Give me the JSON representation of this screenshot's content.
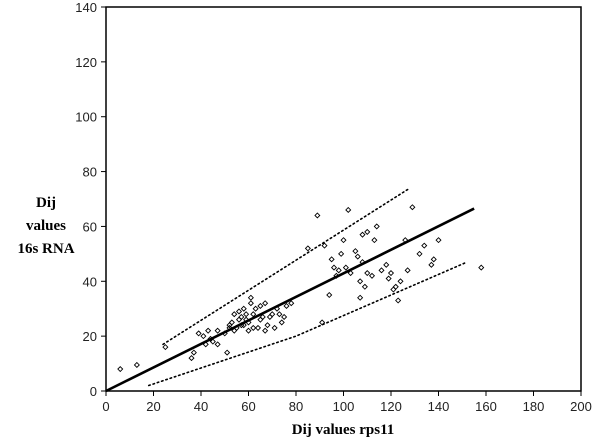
{
  "chart_data": {
    "type": "scatter",
    "xlabel": "Dij values rps11",
    "ylabel_lines": [
      "Dij",
      "values",
      "16s RNA"
    ],
    "xlim": [
      0,
      200
    ],
    "ylim": [
      0,
      140
    ],
    "x_ticks": [
      0,
      20,
      40,
      60,
      80,
      100,
      120,
      140,
      160,
      180,
      200
    ],
    "y_ticks": [
      0,
      20,
      40,
      60,
      80,
      100,
      120,
      140
    ],
    "grid": false,
    "legend": "none",
    "points": [
      [
        6,
        8
      ],
      [
        13,
        9.5
      ],
      [
        25,
        16
      ],
      [
        36,
        12
      ],
      [
        37,
        14
      ],
      [
        39,
        21
      ],
      [
        41,
        20
      ],
      [
        42,
        17
      ],
      [
        43,
        22
      ],
      [
        44,
        19
      ],
      [
        45,
        18
      ],
      [
        47,
        17
      ],
      [
        47,
        22
      ],
      [
        50,
        21
      ],
      [
        51,
        14
      ],
      [
        52,
        23
      ],
      [
        52,
        24
      ],
      [
        53,
        25
      ],
      [
        54,
        22
      ],
      [
        54,
        28
      ],
      [
        55,
        23
      ],
      [
        56,
        26
      ],
      [
        56,
        29
      ],
      [
        57,
        24
      ],
      [
        57,
        27
      ],
      [
        58,
        24
      ],
      [
        58,
        30
      ],
      [
        59,
        26
      ],
      [
        59,
        28
      ],
      [
        60,
        22
      ],
      [
        60,
        25
      ],
      [
        61,
        32
      ],
      [
        61,
        34
      ],
      [
        62,
        23
      ],
      [
        62,
        28
      ],
      [
        63,
        30
      ],
      [
        64,
        23
      ],
      [
        65,
        26
      ],
      [
        65,
        31
      ],
      [
        66,
        27
      ],
      [
        67,
        22
      ],
      [
        67,
        32
      ],
      [
        68,
        24
      ],
      [
        69,
        27
      ],
      [
        70,
        28
      ],
      [
        71,
        23
      ],
      [
        72,
        30
      ],
      [
        73,
        28
      ],
      [
        74,
        25
      ],
      [
        75,
        27
      ],
      [
        76,
        31
      ],
      [
        78,
        32
      ],
      [
        85,
        52
      ],
      [
        89,
        64
      ],
      [
        91,
        25
      ],
      [
        92,
        53
      ],
      [
        94,
        35
      ],
      [
        95,
        48
      ],
      [
        96,
        45
      ],
      [
        97,
        42
      ],
      [
        98,
        44
      ],
      [
        99,
        50
      ],
      [
        100,
        55
      ],
      [
        101,
        45
      ],
      [
        102,
        66
      ],
      [
        103,
        43
      ],
      [
        105,
        51
      ],
      [
        106,
        49
      ],
      [
        107,
        34
      ],
      [
        107,
        40
      ],
      [
        108,
        47
      ],
      [
        108,
        57
      ],
      [
        109,
        38
      ],
      [
        110,
        43
      ],
      [
        110,
        58
      ],
      [
        112,
        42
      ],
      [
        113,
        55
      ],
      [
        114,
        60
      ],
      [
        116,
        44
      ],
      [
        118,
        46
      ],
      [
        119,
        41
      ],
      [
        120,
        43
      ],
      [
        121,
        37
      ],
      [
        122,
        38
      ],
      [
        123,
        33
      ],
      [
        124,
        40
      ],
      [
        126,
        55
      ],
      [
        127,
        44
      ],
      [
        129,
        67
      ],
      [
        132,
        50
      ],
      [
        134,
        53
      ],
      [
        137,
        46
      ],
      [
        138,
        48
      ],
      [
        140,
        55
      ],
      [
        158,
        45
      ]
    ],
    "regression_line": {
      "x": [
        0,
        155
      ],
      "y": [
        0,
        66.5
      ]
    },
    "upper_bound": {
      "x": [
        24,
        128
      ],
      "y": [
        17,
        74
      ]
    },
    "lower_bound": {
      "x": [
        18,
        80,
        152
      ],
      "y": [
        2,
        20,
        47
      ]
    }
  }
}
